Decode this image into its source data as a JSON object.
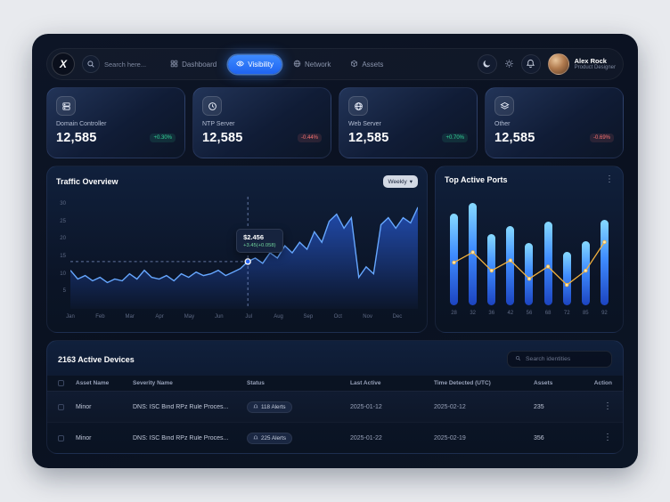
{
  "topbar": {
    "logo_text": "X",
    "search": {
      "placeholder": "Search here..."
    },
    "nav": [
      {
        "label": "Dashboard",
        "icon": "grid-icon",
        "active": false
      },
      {
        "label": "Visibility",
        "icon": "eye-icon",
        "active": true
      },
      {
        "label": "Network",
        "icon": "globe-icon",
        "active": false
      },
      {
        "label": "Assets",
        "icon": "cube-icon",
        "active": false
      }
    ],
    "user": {
      "name": "Alex Rock",
      "role": "Product Designer"
    }
  },
  "stats": [
    {
      "label": "Domain Controller",
      "value": "12,585",
      "change": "+0.30%",
      "trend": "up",
      "icon": "server-icon"
    },
    {
      "label": "NTP Server",
      "value": "12,585",
      "change": "-0.44%",
      "trend": "down",
      "icon": "clock-icon"
    },
    {
      "label": "Web Server",
      "value": "12,585",
      "change": "+0.70%",
      "trend": "up",
      "icon": "globe-icon"
    },
    {
      "label": "Other",
      "value": "12,585",
      "change": "-0.69%",
      "trend": "down",
      "icon": "layers-icon"
    }
  ],
  "traffic": {
    "title": "Traffic Overview",
    "range_label": "Weekly",
    "tooltip": {
      "value": "$2.456",
      "delta": "+3.45(+0.058)"
    }
  },
  "ports": {
    "title": "Top Active Ports"
  },
  "devices": {
    "title": "2163 Active Devices",
    "search_placeholder": "Search identities",
    "columns": [
      "Asset Name",
      "Severity Name",
      "Status",
      "Last Active",
      "Time Detected (UTC)",
      "Assets",
      "Action"
    ],
    "rows": [
      {
        "asset_name": "Minor",
        "severity_name": "DNS: ISC Bind RPz Rule Proces...",
        "status": "118 Alerts",
        "last_active": "2025-01-12",
        "time_detected": "2025-02-12",
        "assets": "235"
      },
      {
        "asset_name": "Minor",
        "severity_name": "DNS: ISC Bind RPz Rule Proces...",
        "status": "225 Alerts",
        "last_active": "2025-01-22",
        "time_detected": "2025-02-19",
        "assets": "356"
      }
    ]
  },
  "icons": {
    "more_vertical": "⋮",
    "chevron_down": "▾"
  },
  "colors": {
    "accent": "#2f7df6",
    "positive": "#34d399",
    "negative": "#f87171",
    "line_yellow": "#f3b23e",
    "bar_top": "#86d9ff",
    "bar_bottom": "#1c44c0"
  },
  "chart_data": [
    {
      "type": "area",
      "title": "Traffic Overview",
      "range": "Weekly",
      "x_labels": [
        "Jan",
        "Feb",
        "Mar",
        "Apr",
        "May",
        "Jun",
        "Jul",
        "Aug",
        "Sep",
        "Oct",
        "Nov",
        "Dec"
      ],
      "y_ticks": [
        5,
        10,
        15,
        20,
        25,
        30
      ],
      "ylim": [
        0,
        32
      ],
      "values": [
        11,
        8.5,
        9.5,
        8,
        9,
        7.5,
        8.5,
        8,
        10,
        8.5,
        11,
        9,
        8.5,
        9.5,
        8,
        10,
        9,
        10.5,
        9.5,
        10,
        11,
        9.5,
        10.5,
        11.5,
        13.5,
        14.5,
        13,
        16,
        14.5,
        18,
        16,
        19,
        17,
        22,
        19,
        25,
        27,
        23,
        26,
        9,
        12,
        10,
        24,
        26,
        23,
        26,
        24.5,
        29
      ],
      "highlight": {
        "index": 24,
        "label": "$2.456",
        "sublabel": "+3.45(+0.058)"
      }
    },
    {
      "type": "bar+line",
      "title": "Top Active Ports",
      "categories": [
        "28",
        "32",
        "36",
        "42",
        "56",
        "68",
        "72",
        "85",
        "92"
      ],
      "bar_values": [
        90,
        100,
        70,
        78,
        61,
        82,
        52,
        63,
        84
      ],
      "line_values": [
        42,
        52,
        34,
        44,
        26,
        38,
        20,
        34,
        62
      ],
      "ylim": [
        0,
        110
      ],
      "legend_position": "none",
      "grid": false
    }
  ]
}
